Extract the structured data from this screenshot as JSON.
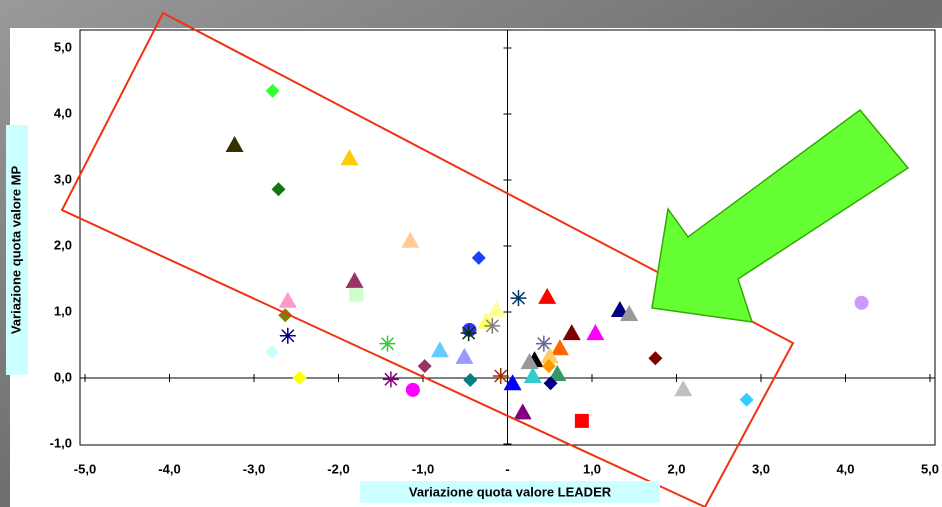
{
  "chart_data": {
    "type": "scatter",
    "x_label": "Variazione quota valore LEADER",
    "y_label": "Variazione quota valore MP",
    "xlim": [
      -5,
      5
    ],
    "ylim": [
      -1,
      5
    ],
    "xticks": [
      {
        "value": -5,
        "label": "-5,0"
      },
      {
        "value": -4,
        "label": "-4,0"
      },
      {
        "value": -3,
        "label": "-3,0"
      },
      {
        "value": -2,
        "label": "-2,0"
      },
      {
        "value": -1,
        "label": "-1,0"
      },
      {
        "value": 0,
        "label": "-"
      },
      {
        "value": 1,
        "label": "1,0"
      },
      {
        "value": 2,
        "label": "2,0"
      },
      {
        "value": 3,
        "label": "3,0"
      },
      {
        "value": 4,
        "label": "4,0"
      },
      {
        "value": 5,
        "label": "5,0"
      }
    ],
    "yticks": [
      {
        "value": -1,
        "label": "-1,0"
      },
      {
        "value": 0,
        "label": "0,0"
      },
      {
        "value": 1,
        "label": "1,0"
      },
      {
        "value": 2,
        "label": "2,0"
      },
      {
        "value": 3,
        "label": "3,0"
      },
      {
        "value": 4,
        "label": "4,0"
      },
      {
        "value": 5,
        "label": "5,0"
      }
    ],
    "points": [
      {
        "x": -2.78,
        "y": 4.35,
        "color": "#33ff33",
        "marker": "diamond"
      },
      {
        "x": -3.23,
        "y": 3.53,
        "color": "#333300",
        "marker": "triangle"
      },
      {
        "x": -1.87,
        "y": 3.33,
        "color": "#ffcc00",
        "marker": "triangle"
      },
      {
        "x": -2.71,
        "y": 2.86,
        "color": "#117711",
        "marker": "diamond"
      },
      {
        "x": -1.15,
        "y": 2.08,
        "color": "#ffcc99",
        "marker": "triangle"
      },
      {
        "x": -0.34,
        "y": 1.82,
        "color": "#1f3fff",
        "marker": "diamond"
      },
      {
        "x": -1.81,
        "y": 1.47,
        "color": "#993366",
        "marker": "triangle"
      },
      {
        "x": -1.79,
        "y": 1.26,
        "color": "#ccffcc",
        "marker": "square"
      },
      {
        "x": -2.6,
        "y": 1.17,
        "color": "#ff99cc",
        "marker": "triangle"
      },
      {
        "x": -2.63,
        "y": 0.95,
        "color": "#808000",
        "marker": "diamond"
      },
      {
        "x": -2.6,
        "y": 0.64,
        "color": "#000080",
        "marker": "asterisk"
      },
      {
        "x": -2.79,
        "y": 0.39,
        "color": "#ccffff",
        "marker": "diamond"
      },
      {
        "x": -2.46,
        "y": 0.0,
        "color": "#ffff00",
        "marker": "diamond"
      },
      {
        "x": -1.42,
        "y": 0.52,
        "color": "#33cc33",
        "marker": "asterisk"
      },
      {
        "x": -1.38,
        "y": -0.02,
        "color": "#800080",
        "marker": "asterisk"
      },
      {
        "x": -0.98,
        "y": 0.18,
        "color": "#993366",
        "marker": "diamond"
      },
      {
        "x": -1.12,
        "y": -0.18,
        "color": "#ff00ff",
        "marker": "circle"
      },
      {
        "x": -0.8,
        "y": 0.42,
        "color": "#66ccff",
        "marker": "triangle"
      },
      {
        "x": -0.51,
        "y": 0.32,
        "color": "#9999ff",
        "marker": "triangle"
      },
      {
        "x": -0.44,
        "y": -0.03,
        "color": "#008080",
        "marker": "diamond"
      },
      {
        "x": -0.45,
        "y": 0.73,
        "color": "#3333ff",
        "marker": "circle"
      },
      {
        "x": -0.46,
        "y": 0.68,
        "color": "#003300",
        "marker": "asterisk"
      },
      {
        "x": -0.13,
        "y": 1.03,
        "color": "#ffff99",
        "marker": "triangle"
      },
      {
        "x": -0.25,
        "y": 0.85,
        "color": "#ffff66",
        "marker": "triangle"
      },
      {
        "x": -0.18,
        "y": 0.79,
        "color": "#808080",
        "marker": "asterisk"
      },
      {
        "x": -0.08,
        "y": 0.03,
        "color": "#993300",
        "marker": "asterisk"
      },
      {
        "x": 0.13,
        "y": 1.21,
        "color": "#003366",
        "marker": "asterisk"
      },
      {
        "x": 0.47,
        "y": 1.23,
        "color": "#ff0000",
        "marker": "triangle"
      },
      {
        "x": 0.76,
        "y": 0.68,
        "color": "#800000",
        "marker": "triangle"
      },
      {
        "x": 1.04,
        "y": 0.68,
        "color": "#ff00ff",
        "marker": "triangle"
      },
      {
        "x": 1.33,
        "y": 1.03,
        "color": "#000080",
        "marker": "triangle"
      },
      {
        "x": 1.44,
        "y": 0.97,
        "color": "#999999",
        "marker": "triangle"
      },
      {
        "x": 0.43,
        "y": 0.52,
        "color": "#666699",
        "marker": "asterisk"
      },
      {
        "x": 0.62,
        "y": 0.45,
        "color": "#ff6600",
        "marker": "triangle"
      },
      {
        "x": 0.5,
        "y": 0.33,
        "color": "#ffcc66",
        "marker": "triangle"
      },
      {
        "x": 0.32,
        "y": 0.27,
        "color": "#000000",
        "marker": "triangle"
      },
      {
        "x": 0.26,
        "y": 0.24,
        "color": "#999999",
        "marker": "triangle"
      },
      {
        "x": 0.49,
        "y": 0.18,
        "color": "#ff9900",
        "marker": "diamond"
      },
      {
        "x": 0.3,
        "y": 0.03,
        "color": "#33cccc",
        "marker": "triangle"
      },
      {
        "x": 0.59,
        "y": 0.06,
        "color": "#339966",
        "marker": "triangle"
      },
      {
        "x": 0.51,
        "y": -0.08,
        "color": "#000080",
        "marker": "diamond"
      },
      {
        "x": 0.06,
        "y": -0.08,
        "color": "#0000ff",
        "marker": "triangle"
      },
      {
        "x": 0.18,
        "y": -0.52,
        "color": "#800080",
        "marker": "triangle"
      },
      {
        "x": 0.88,
        "y": -0.65,
        "color": "#ff0000",
        "marker": "square"
      },
      {
        "x": 1.75,
        "y": 0.3,
        "color": "#800000",
        "marker": "diamond"
      },
      {
        "x": 2.08,
        "y": -0.17,
        "color": "#c0c0c0",
        "marker": "triangle"
      },
      {
        "x": 2.83,
        "y": -0.33,
        "color": "#33ccff",
        "marker": "diamond"
      },
      {
        "x": 4.19,
        "y": 1.14,
        "color": "#cc99ff",
        "marker": "circle"
      }
    ]
  }
}
